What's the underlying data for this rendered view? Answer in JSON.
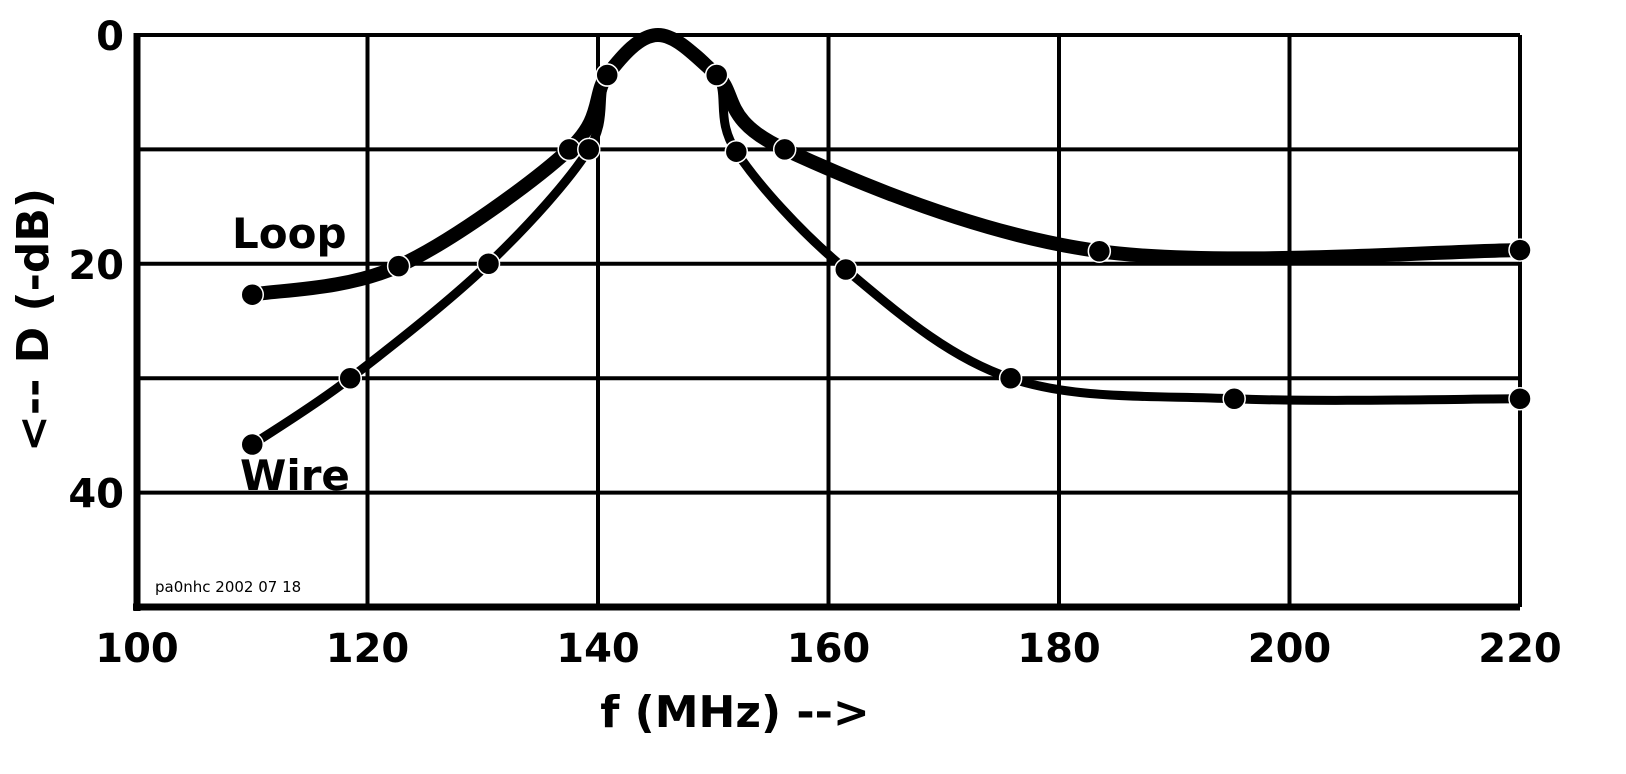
{
  "chart_data": {
    "type": "line",
    "xlabel": "f (MHz) -->",
    "ylabel": "<-- D (-dB)",
    "xlim": [
      100,
      220
    ],
    "ylim": [
      0,
      50
    ],
    "y_inverted": true,
    "grid": true,
    "xticks": [
      100,
      120,
      140,
      160,
      180,
      200,
      220
    ],
    "yticks": [
      0,
      20,
      40
    ],
    "ytick_labels": [
      "0",
      "20",
      "40"
    ],
    "xtick_labels": [
      "100",
      "120",
      "140",
      "160",
      "180",
      "200",
      "220"
    ],
    "credit": "pa0nhc 2002 07 18",
    "series": [
      {
        "name": "Loop",
        "points": [
          [
            110,
            22.7
          ],
          [
            122.7,
            20.2
          ],
          [
            137.5,
            10
          ],
          [
            140.8,
            3.5
          ],
          [
            145.2,
            0
          ],
          [
            150.3,
            3.5
          ],
          [
            156.2,
            10
          ],
          [
            183.5,
            18.9
          ],
          [
            220,
            18.8
          ]
        ]
      },
      {
        "name": "Wire",
        "points": [
          [
            110,
            35.8
          ],
          [
            118.5,
            30
          ],
          [
            130.5,
            20
          ],
          [
            139.2,
            10
          ],
          [
            140.8,
            3.5
          ],
          [
            145.2,
            0
          ],
          [
            150.3,
            3.5
          ],
          [
            152,
            10.2
          ],
          [
            161.5,
            20.5
          ],
          [
            175.8,
            30
          ],
          [
            195.2,
            31.8
          ],
          [
            220,
            31.8
          ]
        ]
      }
    ]
  }
}
